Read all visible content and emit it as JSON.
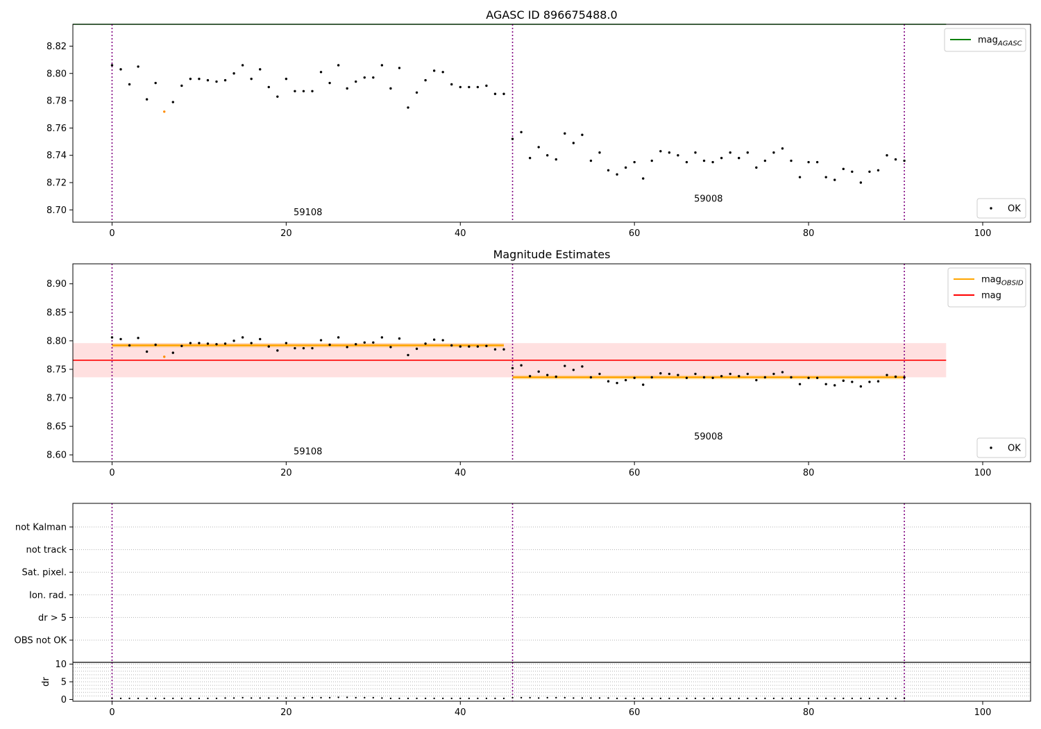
{
  "chart_data": [
    {
      "type": "scatter",
      "title": "AGASC ID 896675488.0",
      "xlim": [
        -4.5,
        105.5
      ],
      "ylim": [
        8.691,
        8.836
      ],
      "xticks": [
        "0",
        "20",
        "40",
        "60",
        "80",
        "100"
      ],
      "yticks": [
        "8.70",
        "8.72",
        "8.74",
        "8.76",
        "8.78",
        "8.80",
        "8.82"
      ],
      "legend_top": [
        {
          "label_main": "mag",
          "label_sub": "AGASC",
          "color": "#008000"
        }
      ],
      "legend_bottom": [
        {
          "label": "OK",
          "color": "#000000"
        }
      ],
      "agasc_mag": 8.836,
      "obs_boundaries": [
        0,
        46,
        91
      ],
      "obs_labels": [
        {
          "text": "59108",
          "x": 22.5,
          "y": 8.696
        },
        {
          "text": "59008",
          "x": 68.5,
          "y": 8.706
        }
      ],
      "ok_points": [
        [
          0,
          8.806
        ],
        [
          1,
          8.803
        ],
        [
          2,
          8.792
        ],
        [
          3,
          8.805
        ],
        [
          4,
          8.781
        ],
        [
          5,
          8.793
        ],
        [
          7,
          8.779
        ],
        [
          8,
          8.791
        ],
        [
          9,
          8.796
        ],
        [
          10,
          8.796
        ],
        [
          11,
          8.795
        ],
        [
          12,
          8.794
        ],
        [
          13,
          8.795
        ],
        [
          14,
          8.8
        ],
        [
          15,
          8.806
        ],
        [
          16,
          8.796
        ],
        [
          17,
          8.803
        ],
        [
          18,
          8.79
        ],
        [
          19,
          8.783
        ],
        [
          20,
          8.796
        ],
        [
          21,
          8.787
        ],
        [
          22,
          8.787
        ],
        [
          23,
          8.787
        ],
        [
          24,
          8.801
        ],
        [
          25,
          8.793
        ],
        [
          26,
          8.806
        ],
        [
          27,
          8.789
        ],
        [
          28,
          8.794
        ],
        [
          29,
          8.797
        ],
        [
          30,
          8.797
        ],
        [
          31,
          8.806
        ],
        [
          32,
          8.789
        ],
        [
          33,
          8.804
        ],
        [
          34,
          8.775
        ],
        [
          35,
          8.786
        ],
        [
          36,
          8.795
        ],
        [
          37,
          8.802
        ],
        [
          38,
          8.801
        ],
        [
          39,
          8.792
        ],
        [
          40,
          8.79
        ],
        [
          41,
          8.79
        ],
        [
          42,
          8.79
        ],
        [
          43,
          8.791
        ],
        [
          44,
          8.785
        ],
        [
          45,
          8.785
        ],
        [
          46,
          8.752
        ],
        [
          47,
          8.757
        ],
        [
          48,
          8.738
        ],
        [
          49,
          8.746
        ],
        [
          50,
          8.74
        ],
        [
          51,
          8.737
        ],
        [
          52,
          8.756
        ],
        [
          53,
          8.749
        ],
        [
          54,
          8.755
        ],
        [
          55,
          8.736
        ],
        [
          56,
          8.742
        ],
        [
          57,
          8.729
        ],
        [
          58,
          8.726
        ],
        [
          59,
          8.731
        ],
        [
          60,
          8.735
        ],
        [
          61,
          8.723
        ],
        [
          62,
          8.736
        ],
        [
          63,
          8.743
        ],
        [
          64,
          8.742
        ],
        [
          65,
          8.74
        ],
        [
          66,
          8.735
        ],
        [
          67,
          8.742
        ],
        [
          68,
          8.736
        ],
        [
          69,
          8.735
        ],
        [
          70,
          8.738
        ],
        [
          71,
          8.742
        ],
        [
          72,
          8.738
        ],
        [
          73,
          8.742
        ],
        [
          74,
          8.731
        ],
        [
          75,
          8.736
        ],
        [
          76,
          8.742
        ],
        [
          77,
          8.745
        ],
        [
          78,
          8.736
        ],
        [
          79,
          8.724
        ],
        [
          80,
          8.735
        ],
        [
          81,
          8.735
        ],
        [
          82,
          8.724
        ],
        [
          83,
          8.722
        ],
        [
          84,
          8.73
        ],
        [
          85,
          8.728
        ],
        [
          86,
          8.72
        ],
        [
          87,
          8.728
        ],
        [
          88,
          8.729
        ],
        [
          89,
          8.74
        ],
        [
          90,
          8.737
        ],
        [
          91,
          8.736
        ]
      ],
      "other_points": [
        [
          6,
          8.772
        ]
      ]
    },
    {
      "type": "scatter",
      "title": "Magnitude Estimates",
      "xlim": [
        -4.5,
        105.5
      ],
      "ylim": [
        8.588,
        8.935
      ],
      "xticks": [
        "0",
        "20",
        "40",
        "60",
        "80",
        "100"
      ],
      "yticks": [
        "8.60",
        "8.65",
        "8.70",
        "8.75",
        "8.80",
        "8.85",
        "8.90"
      ],
      "legend_top": [
        {
          "label_main": "mag",
          "label_sub": "OBSID",
          "color": "#ffa500"
        },
        {
          "label_main": "mag",
          "label_sub": "",
          "color": "#ff0000"
        }
      ],
      "legend_bottom": [
        {
          "label": "OK",
          "color": "#000000"
        }
      ],
      "mag": 8.766,
      "mag_band": [
        8.736,
        8.796
      ],
      "mag_obsid": [
        {
          "x_start": 0,
          "x_end": 45,
          "value": 8.792,
          "band": [
            8.788,
            8.796
          ]
        },
        {
          "x_start": 46,
          "x_end": 91,
          "value": 8.736,
          "band": [
            8.732,
            8.74
          ]
        }
      ],
      "obs_boundaries": [
        0,
        46,
        91
      ],
      "obs_labels": [
        {
          "text": "59108",
          "x": 22.5,
          "y": 8.601
        },
        {
          "text": "59008",
          "x": 68.5,
          "y": 8.627
        }
      ]
    },
    {
      "type": "scatter",
      "xlim": [
        -4.5,
        105.5
      ],
      "flag_labels": [
        "not Kalman",
        "not track",
        "Sat. pixel.",
        "Ion. rad.",
        "dr > 5",
        "OBS not OK"
      ],
      "obs_boundaries": [
        0,
        46,
        91
      ]
    },
    {
      "type": "scatter",
      "ylabel": "dr",
      "xlim": [
        -4.5,
        105.5
      ],
      "ylim": [
        -0.5,
        10.5
      ],
      "xticks": [
        "0",
        "20",
        "40",
        "60",
        "80",
        "100"
      ],
      "yticks": [
        "0",
        "5",
        "10"
      ],
      "obs_boundaries": [
        0,
        46,
        91
      ],
      "dr_values": [
        0.3,
        0.3,
        0.3,
        0.3,
        0.3,
        0.3,
        0.3,
        0.3,
        0.3,
        0.3,
        0.3,
        0.3,
        0.3,
        0.4,
        0.4,
        0.5,
        0.4,
        0.4,
        0.4,
        0.4,
        0.4,
        0.4,
        0.5,
        0.5,
        0.5,
        0.5,
        0.6,
        0.6,
        0.5,
        0.5,
        0.5,
        0.4,
        0.3,
        0.3,
        0.3,
        0.3,
        0.3,
        0.3,
        0.3,
        0.3,
        0.3,
        0.3,
        0.3,
        0.3,
        0.3,
        0.3,
        0.5,
        0.5,
        0.5,
        0.4,
        0.5,
        0.5,
        0.5,
        0.4,
        0.4,
        0.4,
        0.4,
        0.4,
        0.3,
        0.3,
        0.3,
        0.3,
        0.3,
        0.3,
        0.3,
        0.3,
        0.3,
        0.3,
        0.3,
        0.3,
        0.3,
        0.3,
        0.3,
        0.3,
        0.3,
        0.3,
        0.3,
        0.3,
        0.3,
        0.3,
        0.3,
        0.3,
        0.3,
        0.3,
        0.3,
        0.3,
        0.3,
        0.3,
        0.3,
        0.3,
        0.3,
        0.3
      ]
    }
  ]
}
